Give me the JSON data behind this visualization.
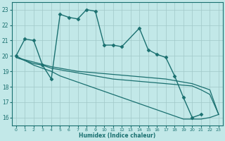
{
  "title": "",
  "xlabel": "Humidex (Indice chaleur)",
  "xlim": [
    -0.5,
    23.5
  ],
  "ylim": [
    15.5,
    23.5
  ],
  "yticks": [
    16,
    17,
    18,
    19,
    20,
    21,
    22,
    23
  ],
  "xticks": [
    0,
    1,
    2,
    3,
    4,
    5,
    6,
    7,
    8,
    9,
    10,
    11,
    12,
    13,
    14,
    15,
    16,
    17,
    18,
    19,
    20,
    21,
    22,
    23
  ],
  "background_color": "#c2e8e8",
  "grid_color": "#a0c8c8",
  "line_color": "#1a7070",
  "series": [
    {
      "x": [
        0,
        1,
        2,
        3,
        4,
        5,
        6,
        7,
        8,
        9,
        10,
        11,
        12,
        14,
        15,
        16,
        17,
        18,
        19,
        20,
        21
      ],
      "y": [
        20.0,
        21.1,
        21.0,
        19.4,
        18.5,
        22.7,
        22.5,
        22.4,
        23.0,
        22.9,
        20.7,
        20.7,
        20.6,
        21.8,
        20.4,
        20.1,
        19.9,
        18.7,
        17.3,
        16.0,
        16.2
      ],
      "marker": "D",
      "markersize": 2.5,
      "linewidth": 1.0
    },
    {
      "x": [
        0,
        1,
        2,
        3,
        4,
        5,
        6,
        7,
        8,
        9,
        10,
        11,
        12,
        13,
        14,
        15,
        16,
        17,
        18,
        19,
        20,
        21,
        22,
        23
      ],
      "y": [
        19.9,
        19.7,
        19.5,
        19.4,
        19.2,
        19.1,
        19.0,
        18.9,
        18.8,
        18.7,
        18.6,
        18.5,
        18.45,
        18.4,
        18.35,
        18.3,
        18.25,
        18.2,
        18.15,
        18.1,
        18.05,
        17.8,
        17.5,
        16.2
      ],
      "marker": null,
      "markersize": 0,
      "linewidth": 0.9
    },
    {
      "x": [
        0,
        1,
        2,
        3,
        4,
        5,
        6,
        7,
        8,
        9,
        10,
        11,
        12,
        13,
        14,
        15,
        16,
        17,
        18,
        19,
        20,
        21,
        22,
        23
      ],
      "y": [
        19.9,
        19.75,
        19.6,
        19.45,
        19.3,
        19.2,
        19.1,
        19.0,
        18.95,
        18.9,
        18.85,
        18.8,
        18.75,
        18.7,
        18.65,
        18.6,
        18.55,
        18.5,
        18.4,
        18.3,
        18.2,
        18.0,
        17.8,
        16.2
      ],
      "marker": null,
      "markersize": 0,
      "linewidth": 0.9
    },
    {
      "x": [
        0,
        1,
        2,
        3,
        4,
        5,
        6,
        7,
        8,
        9,
        10,
        11,
        12,
        13,
        14,
        15,
        16,
        17,
        18,
        19,
        20,
        21,
        22,
        23
      ],
      "y": [
        20.0,
        19.7,
        19.4,
        19.2,
        19.0,
        18.7,
        18.5,
        18.3,
        18.1,
        17.9,
        17.7,
        17.5,
        17.3,
        17.1,
        16.9,
        16.7,
        16.5,
        16.3,
        16.1,
        15.9,
        15.9,
        15.9,
        16.0,
        16.2
      ],
      "marker": null,
      "markersize": 0,
      "linewidth": 0.9
    }
  ]
}
